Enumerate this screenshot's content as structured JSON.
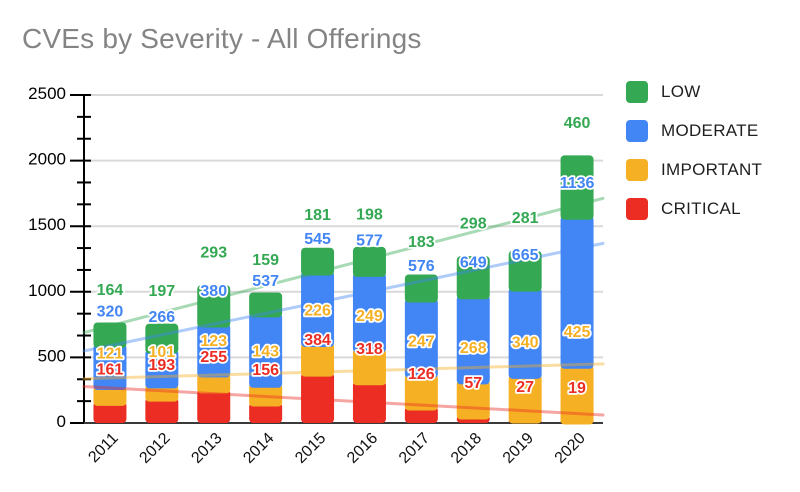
{
  "chart_data": {
    "type": "bar",
    "stacked": true,
    "title": "CVEs by Severity - All Offerings",
    "xlabel": "",
    "ylabel": "",
    "categories": [
      "2011",
      "2012",
      "2013",
      "2014",
      "2015",
      "2016",
      "2017",
      "2018",
      "2019",
      "2020"
    ],
    "series": [
      {
        "name": "CRITICAL",
        "color": "#EB2D24",
        "values": [
          161,
          193,
          255,
          156,
          384,
          318,
          126,
          57,
          27,
          19
        ]
      },
      {
        "name": "IMPORTANT",
        "color": "#F6B024",
        "values": [
          121,
          101,
          123,
          143,
          226,
          249,
          247,
          268,
          340,
          425
        ]
      },
      {
        "name": "MODERATE",
        "color": "#4285F4",
        "values": [
          320,
          266,
          380,
          537,
          545,
          577,
          576,
          649,
          665,
          1136
        ]
      },
      {
        "name": "LOW",
        "color": "#34A853",
        "values": [
          164,
          197,
          293,
          159,
          181,
          198,
          183,
          298,
          281,
          460
        ]
      }
    ],
    "trendlines": [
      {
        "series": "LOW",
        "color": "#34A853",
        "start_value": 689,
        "end_value": 1712
      },
      {
        "series": "MODERATE",
        "color": "#4285F4",
        "start_value": 549,
        "end_value": 1369
      },
      {
        "series": "IMPORTANT",
        "color": "#F6B024",
        "start_value": 337,
        "end_value": 451
      },
      {
        "series": "CRITICAL",
        "color": "#EB2D24",
        "start_value": 278,
        "end_value": 61
      }
    ],
    "ylim": [
      0,
      2500
    ],
    "yticks": [
      0,
      500,
      1000,
      1500,
      2000,
      2500
    ],
    "y_minor_ticks_per_interval": 2,
    "grid": true,
    "legend_position": "right",
    "legend_order": [
      "LOW",
      "MODERATE",
      "IMPORTANT",
      "CRITICAL"
    ],
    "data_labels_shown": true
  }
}
